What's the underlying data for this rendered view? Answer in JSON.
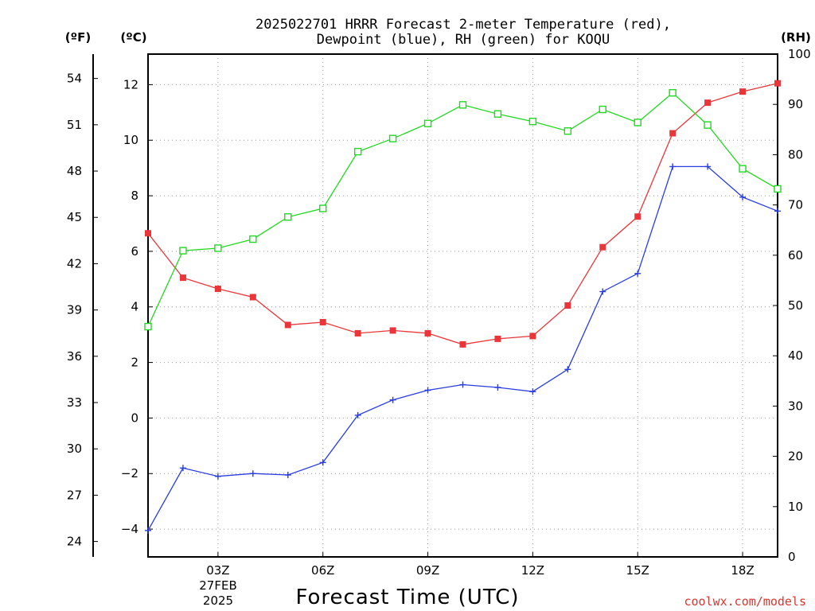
{
  "title_line1": "2025022701 HRRR Forecast 2-meter Temperature (red),",
  "title_line2": "Dewpoint (blue), RH (green) for KOQU",
  "unit_f": "(ºF)",
  "unit_c": "(ºC)",
  "unit_rh": "(RH)",
  "credit": "coolwx.com/models",
  "colors": {
    "temperature": "#e8363a",
    "dewpoint": "#2a3de0",
    "rh": "#22d822",
    "credit": "#d8362f"
  },
  "chart_data": {
    "type": "line",
    "xlabel": "Forecast Time (UTC)",
    "x": [
      "01Z",
      "02Z",
      "03Z",
      "04Z",
      "05Z",
      "06Z",
      "07Z",
      "08Z",
      "09Z",
      "10Z",
      "11Z",
      "12Z",
      "13Z",
      "14Z",
      "15Z",
      "16Z",
      "17Z",
      "18Z",
      "19Z"
    ],
    "x_tick_labels": [
      "03Z",
      "06Z",
      "09Z",
      "12Z",
      "15Z",
      "18Z"
    ],
    "x_tick_indices": [
      2,
      5,
      8,
      11,
      14,
      17
    ],
    "date_label_line1": "27FEB",
    "date_label_line2": "2025",
    "celsius_axis": {
      "label": "(ºC)",
      "range": [
        -5.0,
        13.1
      ],
      "ticks": [
        -4,
        -2,
        0,
        2,
        4,
        6,
        8,
        10,
        12
      ]
    },
    "fahrenheit_axis": {
      "label": "(ºF)",
      "ticks": [
        24,
        27,
        30,
        33,
        36,
        39,
        42,
        45,
        48,
        51,
        54
      ]
    },
    "rh_axis": {
      "label": "(RH)",
      "range": [
        0,
        100
      ],
      "ticks": [
        0,
        10,
        20,
        30,
        40,
        50,
        60,
        70,
        80,
        90,
        100
      ]
    },
    "grid": true,
    "series": [
      {
        "name": "Temperature",
        "axis": "celsius",
        "marker": "filled-square",
        "values": [
          6.65,
          5.05,
          4.65,
          4.35,
          3.35,
          3.45,
          3.05,
          3.15,
          3.05,
          2.65,
          2.85,
          2.95,
          4.05,
          6.15,
          7.25,
          10.25,
          11.35,
          11.75,
          12.05
        ]
      },
      {
        "name": "Dewpoint",
        "axis": "celsius",
        "marker": "plus",
        "values": [
          -4.05,
          -1.8,
          -2.1,
          -2.0,
          -2.05,
          -1.6,
          0.1,
          0.65,
          1.0,
          1.2,
          1.1,
          0.95,
          1.75,
          4.55,
          5.2,
          9.05,
          9.05,
          7.95,
          7.45
        ]
      },
      {
        "name": "RH",
        "axis": "rh",
        "marker": "open-square",
        "values": [
          45.8,
          60.9,
          61.4,
          63.2,
          67.6,
          69.3,
          80.6,
          83.2,
          86.2,
          89.9,
          88.1,
          86.6,
          84.7,
          89.0,
          86.4,
          92.3,
          85.9,
          77.2,
          73.2
        ]
      }
    ]
  }
}
